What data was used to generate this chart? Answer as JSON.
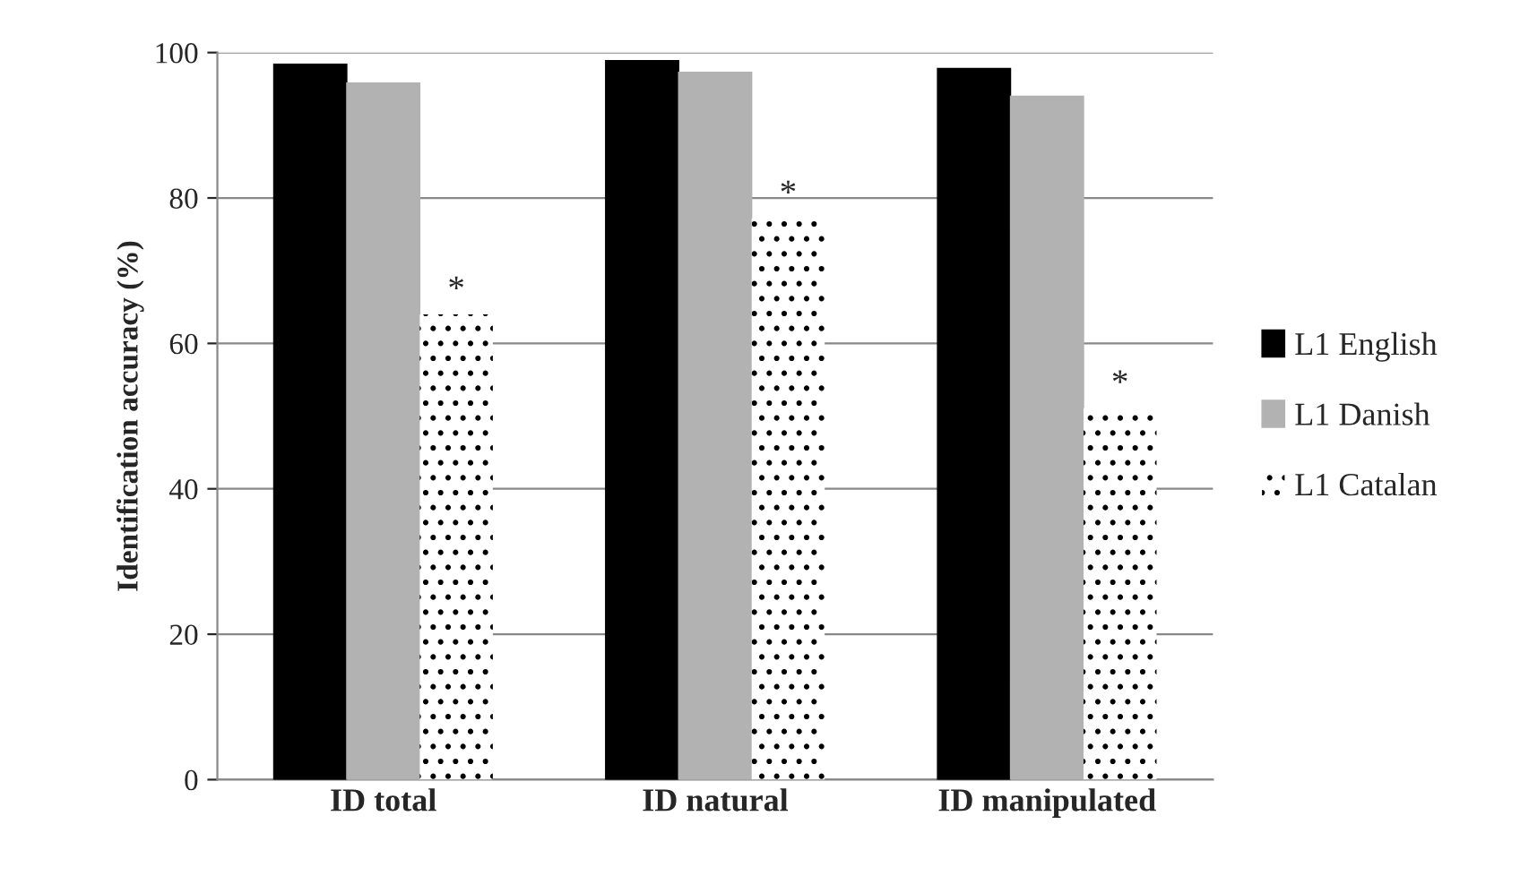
{
  "chart_data": {
    "type": "bar",
    "ylabel": "Identification accuracy (%)",
    "categories": [
      "ID total",
      "ID natural",
      "ID manipulated"
    ],
    "series": [
      {
        "name": "L1 English",
        "color": "#000000",
        "values": [
          98.4,
          98.9,
          97.8
        ]
      },
      {
        "name": "L1 Danish",
        "color": "#b2b2b2",
        "values": [
          95.8,
          97.3,
          94.0
        ]
      },
      {
        "name": "L1 Catalan",
        "color": "#ffffff",
        "values": [
          64.0,
          77.2,
          51.1
        ]
      }
    ],
    "annotations": [
      "*",
      "*",
      "*"
    ],
    "ylim": [
      0,
      100
    ],
    "yticks": [
      0,
      20,
      40,
      60,
      80,
      100
    ],
    "grid": "y",
    "legend": "right"
  }
}
